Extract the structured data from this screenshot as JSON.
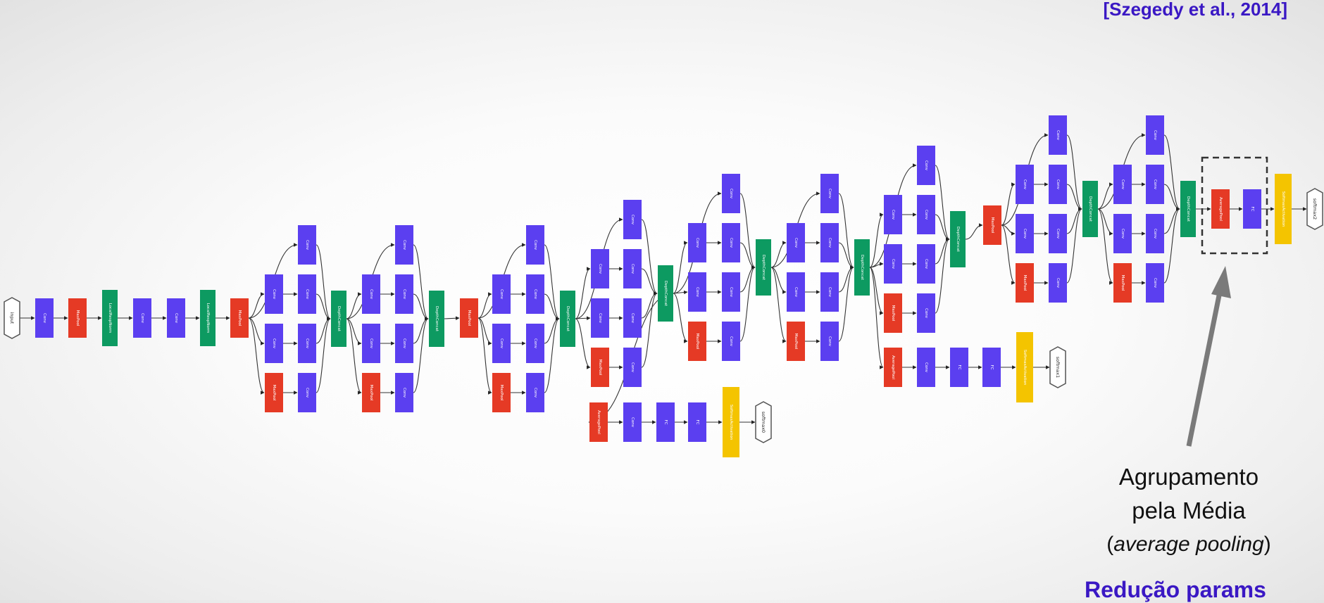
{
  "citation": "[Szegedy et al., 2014]",
  "caption": {
    "line1": "Agrupamento",
    "line2": "pela Média",
    "open_paren": "(",
    "line3_italic": "average pooling",
    "close_paren": ")"
  },
  "footer_text": "Redução params",
  "colors": {
    "conv": "#5b3ff0",
    "pool": "#e53a25",
    "concat": "#0d9a61",
    "softmax": "#f4c400",
    "terminal": "#ffffff",
    "citation": "#3a18c4",
    "arrow": "#777777"
  },
  "node_labels": {
    "conv": "Conv",
    "maxpool": "MaxPool",
    "avgpool": "AveragePool",
    "concat": "DepthConcat",
    "lrn": "LocalRespNorm",
    "fc": "FC",
    "softmax_activation": "SoftmaxActivation",
    "input": "input",
    "softmax0": "softmax0",
    "softmax1": "softmax1",
    "softmax2": "softmax2"
  },
  "icons": {
    "highlight_box": "dashed-rectangle",
    "pointer": "arrow-up-icon"
  }
}
